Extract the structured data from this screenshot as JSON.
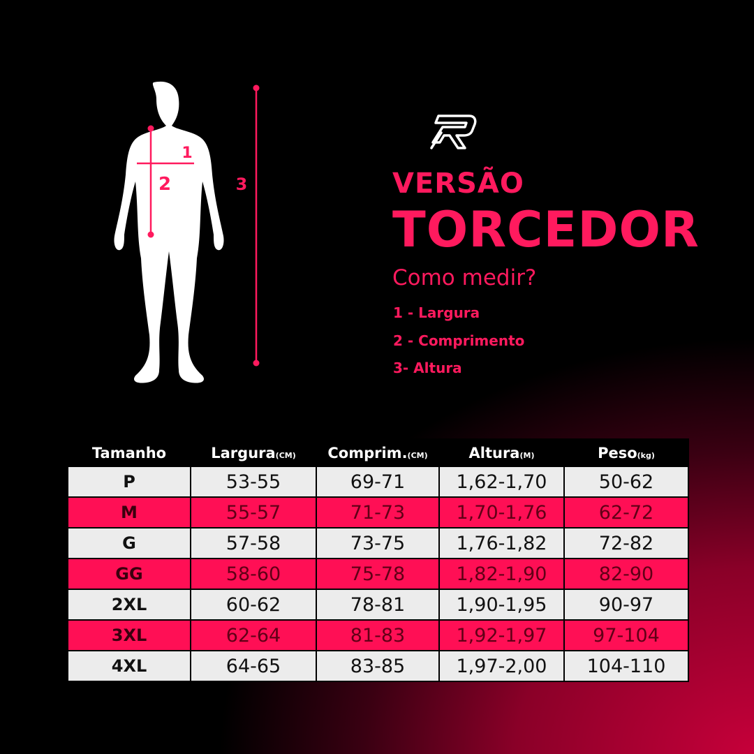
{
  "heading": {
    "line1": "VERSÃO",
    "line2": "TORCEDOR",
    "subtitle": "Como medir?"
  },
  "legend": [
    "1 - Largura",
    "2 - Comprimento",
    "3- Altura"
  ],
  "figure_labels": {
    "width": "1",
    "length": "2",
    "height": "3"
  },
  "colors": {
    "accent": "#ff1a5e",
    "row_highlight": "#ff0f55",
    "row_light": "#ececec",
    "background": "#000000"
  },
  "table": {
    "headers": [
      {
        "label": "Tamanho",
        "unit": ""
      },
      {
        "label": "Largura",
        "unit": "(CM)"
      },
      {
        "label": "Comprim.",
        "unit": "(CM)"
      },
      {
        "label": "Altura",
        "unit": "(M)"
      },
      {
        "label": "Peso",
        "unit": "(kg)"
      }
    ],
    "rows": [
      [
        "P",
        "53-55",
        "69-71",
        "1,62-1,70",
        "50-62"
      ],
      [
        "M",
        "55-57",
        "71-73",
        "1,70-1,76",
        "62-72"
      ],
      [
        "G",
        "57-58",
        "73-75",
        "1,76-1,82",
        "72-82"
      ],
      [
        "GG",
        "58-60",
        "75-78",
        "1,82-1,90",
        "82-90"
      ],
      [
        "2XL",
        "60-62",
        "78-81",
        "1,90-1,95",
        "90-97"
      ],
      [
        "3XL",
        "62-64",
        "81-83",
        "1,92-1,97",
        "97-104"
      ],
      [
        "4XL",
        "64-65",
        "83-85",
        "1,97-2,00",
        "104-110"
      ]
    ]
  }
}
